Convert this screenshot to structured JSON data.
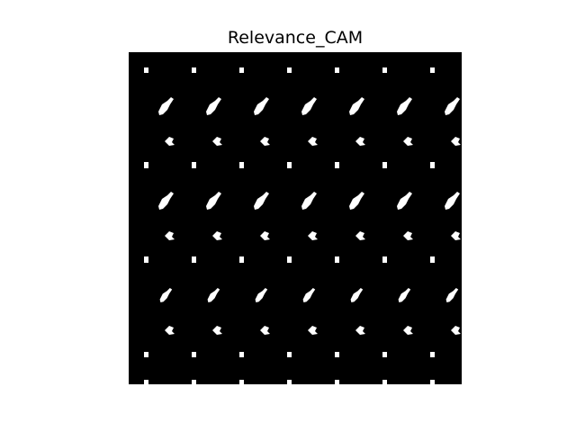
{
  "title": "Relevance_CAM"
}
